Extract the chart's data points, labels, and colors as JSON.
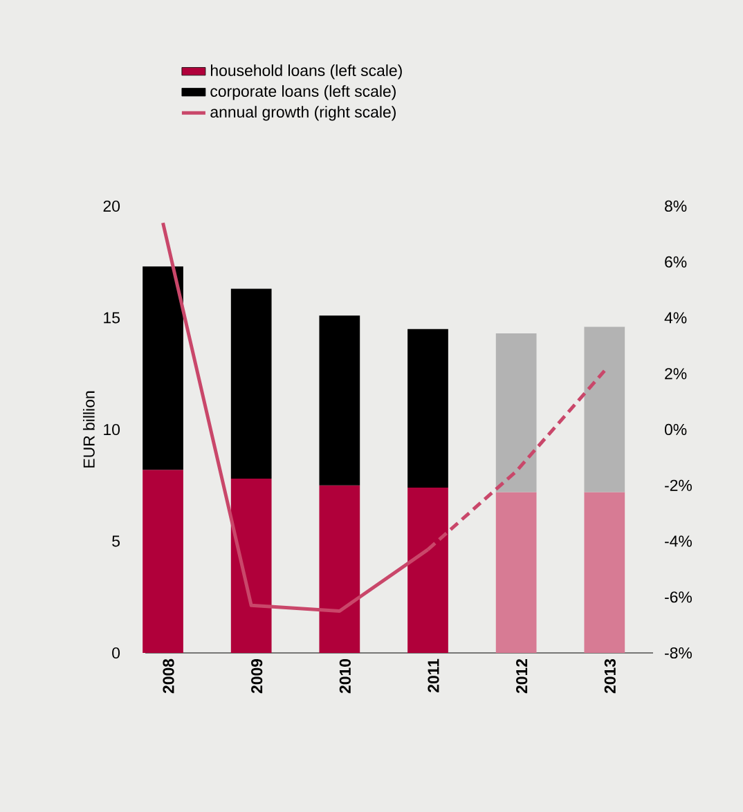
{
  "chart_data": {
    "type": "bar",
    "stacked": true,
    "categories": [
      "2008",
      "2009",
      "2010",
      "2011",
      "2012",
      "2013"
    ],
    "ylabel": "EUR billion",
    "ylim": [
      0,
      20
    ],
    "yticks": [
      0,
      5,
      10,
      15,
      20
    ],
    "y2lim": [
      -8,
      8
    ],
    "y2ticks": [
      {
        "value": 8,
        "label": "8%"
      },
      {
        "value": 6,
        "label": "6%"
      },
      {
        "value": 4,
        "label": "4%"
      },
      {
        "value": 2,
        "label": "2%"
      },
      {
        "value": 0,
        "label": "0%"
      },
      {
        "value": -2,
        "label": "-2%"
      },
      {
        "value": -4,
        "label": "-4%"
      },
      {
        "value": -6,
        "label": "-6%"
      },
      {
        "value": -8,
        "label": "-8%"
      }
    ],
    "legend": "top",
    "grid": false,
    "series": [
      {
        "name": "household loans (left scale)",
        "color": "#b0003a",
        "colors": [
          "#b0003a",
          "#b0003a",
          "#b0003a",
          "#b0003a",
          "#d77b94",
          "#d77b94"
        ],
        "values": [
          8.2,
          7.8,
          7.5,
          7.4,
          7.2,
          7.2
        ]
      },
      {
        "name": "corporate loans (left scale)",
        "color": "#000000",
        "colors": [
          "#000000",
          "#000000",
          "#000000",
          "#000000",
          "#b3b3b3",
          "#b3b3b3"
        ],
        "values": [
          9.1,
          8.5,
          7.6,
          7.1,
          7.1,
          7.4
        ]
      },
      {
        "name": "annual growth (right scale)",
        "type": "line",
        "axis": "y2",
        "color": "#c9476a",
        "line_style": "solid",
        "values": [
          7.4,
          -6.3,
          -6.5,
          -4.3,
          null,
          null
        ]
      },
      {
        "type": "line",
        "axis": "y2",
        "color": "#c9476a",
        "line_style": "dashed",
        "values": [
          null,
          null,
          null,
          -4.3,
          -1.5,
          2.1
        ]
      }
    ]
  }
}
